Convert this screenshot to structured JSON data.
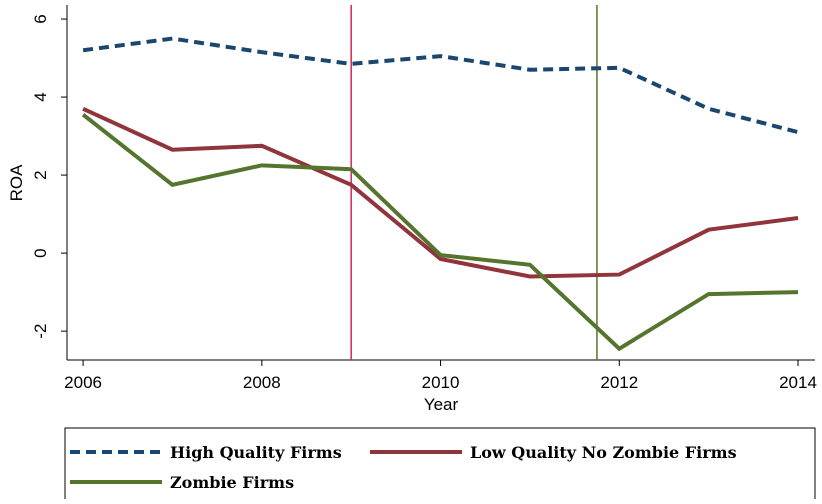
{
  "chart_data": {
    "type": "line",
    "x_label": "Year",
    "y_label": "ROA",
    "x": [
      2006,
      2007,
      2008,
      2009,
      2010,
      2011,
      2012,
      2013,
      2014
    ],
    "series": [
      {
        "name": "High Quality Firms",
        "color": "#1a476f",
        "dashed": true,
        "values": [
          5.2,
          5.5,
          5.15,
          4.85,
          5.05,
          4.7,
          4.75,
          3.7,
          3.1
        ]
      },
      {
        "name": "Low Quality No Zombie Firms",
        "color": "#90353b",
        "dashed": false,
        "values": [
          3.7,
          2.65,
          2.75,
          1.75,
          -0.15,
          -0.6,
          -0.55,
          0.6,
          0.9
        ]
      },
      {
        "name": "Zombie Firms",
        "color": "#55752f",
        "dashed": false,
        "values": [
          3.55,
          1.75,
          2.25,
          2.15,
          -0.05,
          -0.3,
          -2.45,
          -1.05,
          -1.0
        ]
      }
    ],
    "vlines": [
      {
        "x": 2009,
        "color": "#d0284f"
      },
      {
        "x": 2011.75,
        "color": "#55752f"
      }
    ],
    "xlim": [
      2005.82,
      2014.19
    ],
    "xticks": [
      2006,
      2008,
      2010,
      2012,
      2014
    ],
    "ylim": [
      -2.74,
      6.36
    ],
    "yticks": [
      -2,
      0,
      2,
      4,
      6
    ],
    "grid": false,
    "legend": "bottom"
  }
}
